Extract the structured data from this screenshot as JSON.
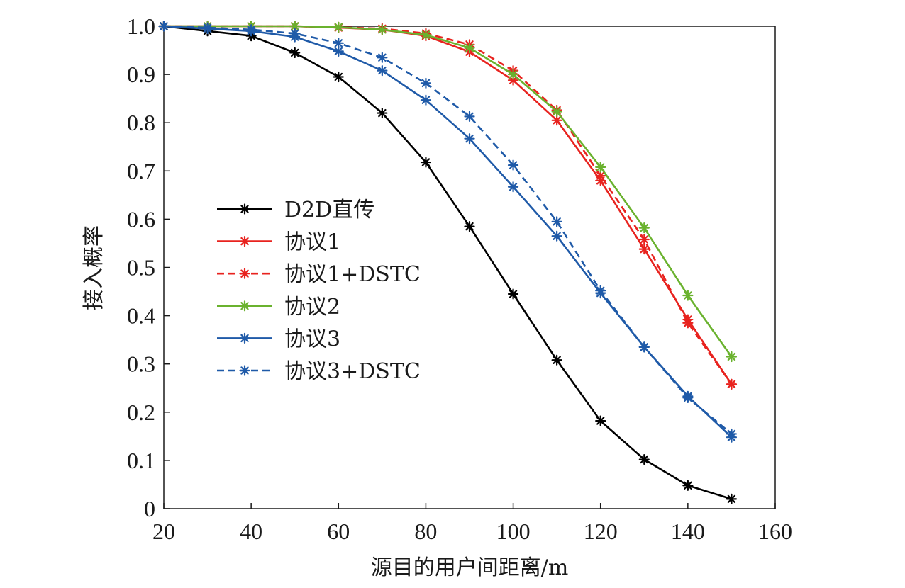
{
  "chart_data": {
    "type": "line",
    "xlabel": "源目的用户间距离/m",
    "ylabel": "接入概率",
    "xlim": [
      20,
      160
    ],
    "ylim": [
      0,
      1.0
    ],
    "x_ticks": [
      20,
      40,
      60,
      80,
      100,
      120,
      140,
      160
    ],
    "y_ticks": [
      0,
      0.1,
      0.2,
      0.3,
      0.4,
      0.5,
      0.6,
      0.7,
      0.8,
      0.9,
      1.0
    ],
    "y_tick_labels": [
      "0",
      "0.1",
      "0.2",
      "0.3",
      "0.4",
      "0.5",
      "0.6",
      "0.7",
      "0.8",
      "0.9",
      "1.0"
    ],
    "grid": false,
    "legend_position": "center-left",
    "x": [
      20,
      30,
      40,
      50,
      60,
      70,
      80,
      90,
      100,
      110,
      120,
      130,
      140,
      150
    ],
    "series": [
      {
        "name": "D2D直传",
        "color": "#000000",
        "dash": "solid",
        "marker": "asterisk",
        "values": [
          1.0,
          0.99,
          0.98,
          0.945,
          0.895,
          0.82,
          0.718,
          0.585,
          0.445,
          0.308,
          0.182,
          0.102,
          0.048,
          0.02
        ]
      },
      {
        "name": "协议1",
        "color": "#e8231f",
        "dash": "solid",
        "marker": "asterisk",
        "values": [
          1.0,
          1.0,
          1.0,
          1.0,
          0.997,
          0.993,
          0.98,
          0.947,
          0.888,
          0.805,
          0.68,
          0.538,
          0.392,
          0.258
        ]
      },
      {
        "name": "协议1+DSTC",
        "color": "#e8231f",
        "dash": "dashed",
        "marker": "asterisk",
        "values": [
          1.0,
          1.0,
          1.0,
          1.0,
          0.998,
          0.995,
          0.985,
          0.962,
          0.908,
          0.826,
          0.69,
          0.558,
          0.385,
          0.258
        ]
      },
      {
        "name": "协议2",
        "color": "#6ab22e",
        "dash": "solid",
        "marker": "asterisk",
        "values": [
          1.0,
          1.0,
          1.0,
          1.0,
          0.998,
          0.993,
          0.982,
          0.955,
          0.9,
          0.823,
          0.708,
          0.582,
          0.442,
          0.315
        ]
      },
      {
        "name": "协议3",
        "color": "#1f5aa8",
        "dash": "solid",
        "marker": "asterisk",
        "values": [
          1.0,
          0.995,
          0.99,
          0.978,
          0.948,
          0.908,
          0.847,
          0.767,
          0.667,
          0.565,
          0.447,
          0.335,
          0.233,
          0.148
        ]
      },
      {
        "name": "协议3+DSTC",
        "color": "#1f5aa8",
        "dash": "dashed",
        "marker": "asterisk",
        "values": [
          1.0,
          0.997,
          0.993,
          0.985,
          0.965,
          0.935,
          0.882,
          0.813,
          0.712,
          0.595,
          0.452,
          0.335,
          0.23,
          0.155
        ]
      }
    ]
  }
}
